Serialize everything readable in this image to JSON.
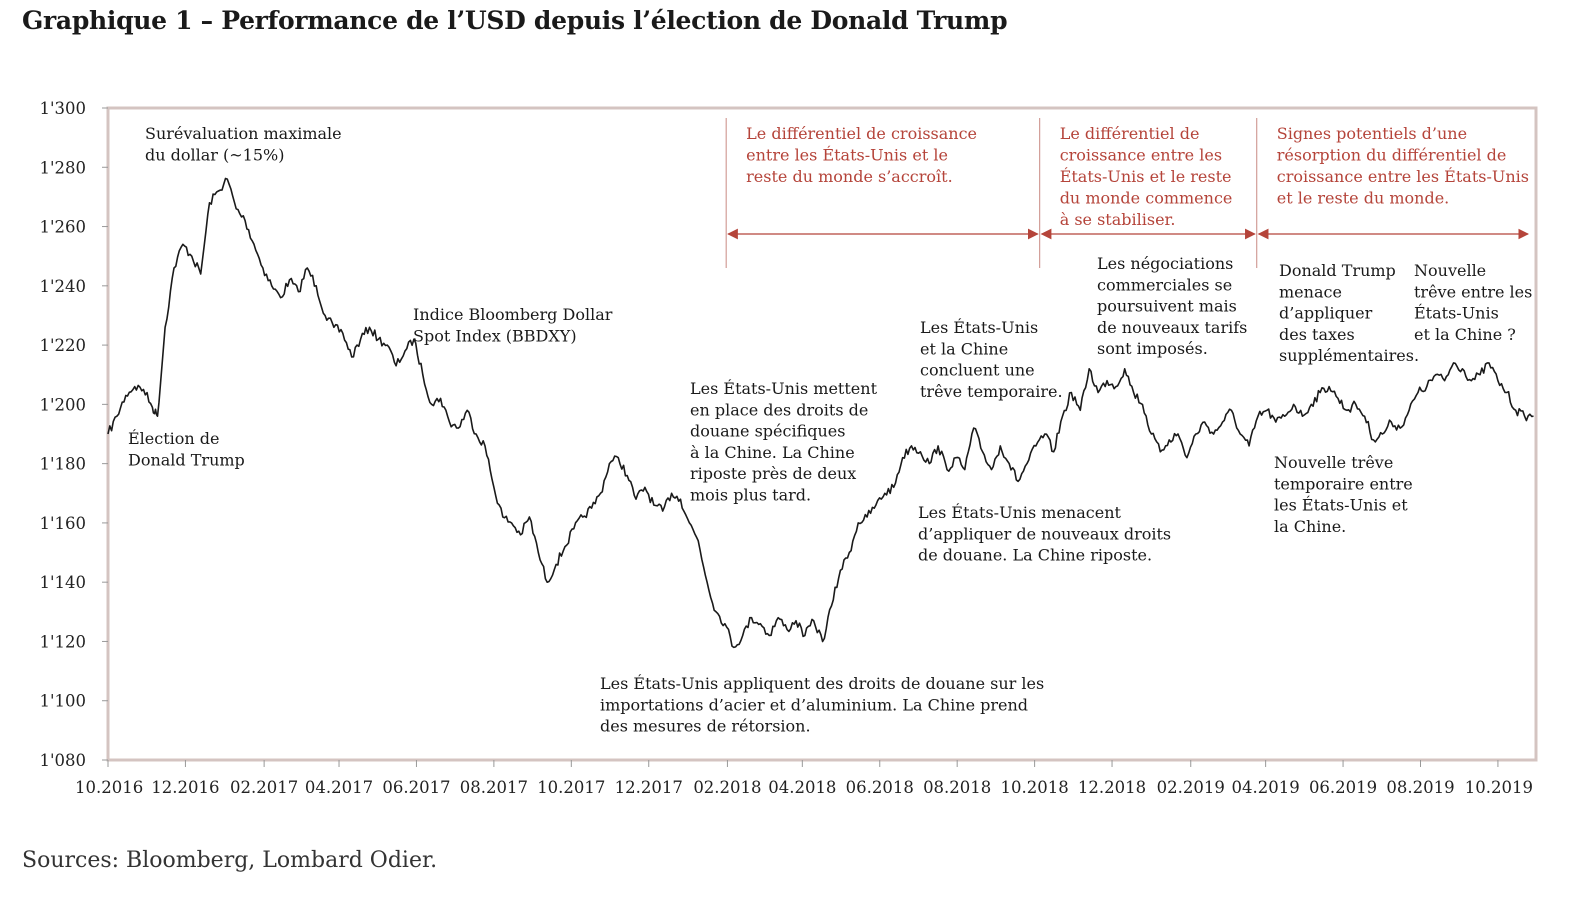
{
  "title": "Graphique 1 – Performance de l’USD depuis l’élection de Donald Trump",
  "sources": "Sources: Bloomberg, Lombard Odier.",
  "colors": {
    "line": "#1a1a1a",
    "frame": "#d4c4c1",
    "phase": "#b5443a",
    "phase_divider": "#c98a83"
  },
  "chart_data": {
    "type": "line",
    "xlim": [
      "2016-10-01",
      "2019-10-31"
    ],
    "ylim": [
      1080,
      1300
    ],
    "y_ticks": [
      1080,
      1100,
      1120,
      1140,
      1160,
      1180,
      1200,
      1220,
      1240,
      1260,
      1280,
      1300
    ],
    "y_tick_labels": [
      "1'080",
      "1'100",
      "1'120",
      "1'140",
      "1'160",
      "1'180",
      "1'200",
      "1'220",
      "1'240",
      "1'260",
      "1'280",
      "1'300"
    ],
    "x_ticks": [
      {
        "date": "2016-10-01",
        "label": "10.2016"
      },
      {
        "date": "2016-12-01",
        "label": "12.2016"
      },
      {
        "date": "2017-02-01",
        "label": "02.2017"
      },
      {
        "date": "2017-04-01",
        "label": "04.2017"
      },
      {
        "date": "2017-06-01",
        "label": "06.2017"
      },
      {
        "date": "2017-08-01",
        "label": "08.2017"
      },
      {
        "date": "2017-10-01",
        "label": "10.2017"
      },
      {
        "date": "2017-12-01",
        "label": "12.2017"
      },
      {
        "date": "2018-02-01",
        "label": "02.2018"
      },
      {
        "date": "2018-04-01",
        "label": "04.2018"
      },
      {
        "date": "2018-06-01",
        "label": "06.2018"
      },
      {
        "date": "2018-08-01",
        "label": "08.2018"
      },
      {
        "date": "2018-10-01",
        "label": "10.2018"
      },
      {
        "date": "2018-12-01",
        "label": "12.2018"
      },
      {
        "date": "2019-02-01",
        "label": "02.2019"
      },
      {
        "date": "2019-04-01",
        "label": "04.2019"
      },
      {
        "date": "2019-06-01",
        "label": "06.2019"
      },
      {
        "date": "2019-08-01",
        "label": "08.2019"
      },
      {
        "date": "2019-10-01",
        "label": "10.2019"
      }
    ],
    "series": [
      {
        "name": "Indice Bloomberg Dollar Spot Index (BBDXY)",
        "points": [
          [
            "2016-10-01",
            1190
          ],
          [
            "2016-10-08",
            1196
          ],
          [
            "2016-10-15",
            1203
          ],
          [
            "2016-10-22",
            1206
          ],
          [
            "2016-10-29",
            1205
          ],
          [
            "2016-11-05",
            1199
          ],
          [
            "2016-11-09",
            1196
          ],
          [
            "2016-11-15",
            1226
          ],
          [
            "2016-11-22",
            1246
          ],
          [
            "2016-11-29",
            1254
          ],
          [
            "2016-12-06",
            1250
          ],
          [
            "2016-12-13",
            1244
          ],
          [
            "2016-12-20",
            1268
          ],
          [
            "2016-12-27",
            1272
          ],
          [
            "2017-01-03",
            1276
          ],
          [
            "2017-01-10",
            1266
          ],
          [
            "2017-01-17",
            1262
          ],
          [
            "2017-01-24",
            1254
          ],
          [
            "2017-01-31",
            1246
          ],
          [
            "2017-02-07",
            1240
          ],
          [
            "2017-02-14",
            1236
          ],
          [
            "2017-02-21",
            1242
          ],
          [
            "2017-02-28",
            1238
          ],
          [
            "2017-03-07",
            1246
          ],
          [
            "2017-03-14",
            1240
          ],
          [
            "2017-03-21",
            1230
          ],
          [
            "2017-03-28",
            1226
          ],
          [
            "2017-04-04",
            1224
          ],
          [
            "2017-04-11",
            1216
          ],
          [
            "2017-04-18",
            1222
          ],
          [
            "2017-04-25",
            1226
          ],
          [
            "2017-05-02",
            1222
          ],
          [
            "2017-05-09",
            1220
          ],
          [
            "2017-05-16",
            1213
          ],
          [
            "2017-05-23",
            1218
          ],
          [
            "2017-05-30",
            1222
          ],
          [
            "2017-06-06",
            1210
          ],
          [
            "2017-06-13",
            1200
          ],
          [
            "2017-06-20",
            1202
          ],
          [
            "2017-06-27",
            1194
          ],
          [
            "2017-07-04",
            1192
          ],
          [
            "2017-07-11",
            1198
          ],
          [
            "2017-07-18",
            1190
          ],
          [
            "2017-07-25",
            1186
          ],
          [
            "2017-08-01",
            1172
          ],
          [
            "2017-08-08",
            1162
          ],
          [
            "2017-08-15",
            1160
          ],
          [
            "2017-08-22",
            1156
          ],
          [
            "2017-08-29",
            1162
          ],
          [
            "2017-09-05",
            1150
          ],
          [
            "2017-09-12",
            1140
          ],
          [
            "2017-09-19",
            1146
          ],
          [
            "2017-09-26",
            1152
          ],
          [
            "2017-10-03",
            1158
          ],
          [
            "2017-10-10",
            1162
          ],
          [
            "2017-10-17",
            1165
          ],
          [
            "2017-10-24",
            1170
          ],
          [
            "2017-10-31",
            1180
          ],
          [
            "2017-11-07",
            1182
          ],
          [
            "2017-11-14",
            1176
          ],
          [
            "2017-11-21",
            1168
          ],
          [
            "2017-11-28",
            1172
          ],
          [
            "2017-12-05",
            1166
          ],
          [
            "2017-12-12",
            1164
          ],
          [
            "2017-12-19",
            1170
          ],
          [
            "2017-12-26",
            1168
          ],
          [
            "2018-01-02",
            1160
          ],
          [
            "2018-01-09",
            1154
          ],
          [
            "2018-01-16",
            1140
          ],
          [
            "2018-01-23",
            1130
          ],
          [
            "2018-01-30",
            1126
          ],
          [
            "2018-02-06",
            1118
          ],
          [
            "2018-02-13",
            1122
          ],
          [
            "2018-02-20",
            1128
          ],
          [
            "2018-02-27",
            1126
          ],
          [
            "2018-03-06",
            1122
          ],
          [
            "2018-03-13",
            1128
          ],
          [
            "2018-03-20",
            1124
          ],
          [
            "2018-03-27",
            1127
          ],
          [
            "2018-04-03",
            1122
          ],
          [
            "2018-04-10",
            1127
          ],
          [
            "2018-04-17",
            1120
          ],
          [
            "2018-04-24",
            1132
          ],
          [
            "2018-05-01",
            1144
          ],
          [
            "2018-05-08",
            1150
          ],
          [
            "2018-05-15",
            1160
          ],
          [
            "2018-05-22",
            1162
          ],
          [
            "2018-05-29",
            1166
          ],
          [
            "2018-06-05",
            1170
          ],
          [
            "2018-06-12",
            1172
          ],
          [
            "2018-06-19",
            1182
          ],
          [
            "2018-06-26",
            1186
          ],
          [
            "2018-07-03",
            1184
          ],
          [
            "2018-07-10",
            1180
          ],
          [
            "2018-07-17",
            1186
          ],
          [
            "2018-07-24",
            1178
          ],
          [
            "2018-07-31",
            1182
          ],
          [
            "2018-08-07",
            1178
          ],
          [
            "2018-08-14",
            1192
          ],
          [
            "2018-08-21",
            1184
          ],
          [
            "2018-08-28",
            1178
          ],
          [
            "2018-09-04",
            1186
          ],
          [
            "2018-09-11",
            1180
          ],
          [
            "2018-09-18",
            1174
          ],
          [
            "2018-09-25",
            1180
          ],
          [
            "2018-10-02",
            1186
          ],
          [
            "2018-10-09",
            1190
          ],
          [
            "2018-10-16",
            1184
          ],
          [
            "2018-10-23",
            1196
          ],
          [
            "2018-10-30",
            1204
          ],
          [
            "2018-11-06",
            1198
          ],
          [
            "2018-11-13",
            1212
          ],
          [
            "2018-11-20",
            1204
          ],
          [
            "2018-11-27",
            1208
          ],
          [
            "2018-12-04",
            1206
          ],
          [
            "2018-12-11",
            1212
          ],
          [
            "2018-12-18",
            1204
          ],
          [
            "2018-12-25",
            1200
          ],
          [
            "2019-01-01",
            1190
          ],
          [
            "2019-01-08",
            1184
          ],
          [
            "2019-01-15",
            1188
          ],
          [
            "2019-01-22",
            1190
          ],
          [
            "2019-01-29",
            1182
          ],
          [
            "2019-02-05",
            1190
          ],
          [
            "2019-02-12",
            1194
          ],
          [
            "2019-02-19",
            1190
          ],
          [
            "2019-02-26",
            1194
          ],
          [
            "2019-03-05",
            1198
          ],
          [
            "2019-03-12",
            1190
          ],
          [
            "2019-03-19",
            1186
          ],
          [
            "2019-03-26",
            1196
          ],
          [
            "2019-04-02",
            1198
          ],
          [
            "2019-04-09",
            1194
          ],
          [
            "2019-04-16",
            1196
          ],
          [
            "2019-04-23",
            1200
          ],
          [
            "2019-04-30",
            1196
          ],
          [
            "2019-05-07",
            1200
          ],
          [
            "2019-05-14",
            1204
          ],
          [
            "2019-05-21",
            1206
          ],
          [
            "2019-05-28",
            1202
          ],
          [
            "2019-06-04",
            1198
          ],
          [
            "2019-06-11",
            1200
          ],
          [
            "2019-06-18",
            1196
          ],
          [
            "2019-06-25",
            1188
          ],
          [
            "2019-07-02",
            1190
          ],
          [
            "2019-07-09",
            1194
          ],
          [
            "2019-07-16",
            1192
          ],
          [
            "2019-07-23",
            1198
          ],
          [
            "2019-07-30",
            1204
          ],
          [
            "2019-08-06",
            1206
          ],
          [
            "2019-08-13",
            1210
          ],
          [
            "2019-08-20",
            1208
          ],
          [
            "2019-08-27",
            1214
          ],
          [
            "2019-09-03",
            1212
          ],
          [
            "2019-09-10",
            1208
          ],
          [
            "2019-09-17",
            1210
          ],
          [
            "2019-09-24",
            1214
          ],
          [
            "2019-10-01",
            1208
          ],
          [
            "2019-10-08",
            1204
          ],
          [
            "2019-10-15",
            1198
          ],
          [
            "2019-10-22",
            1196
          ],
          [
            "2019-10-29",
            1196
          ]
        ]
      }
    ],
    "phases": [
      {
        "start": "2018-01-31",
        "end": "2018-10-05",
        "lines": [
          "Le différentiel de croissance",
          "entre les États-Unis et le",
          "reste du monde s’accroît."
        ]
      },
      {
        "start": "2018-10-05",
        "end": "2019-03-25",
        "lines": [
          "Le différentiel de",
          "croissance entre les",
          "États-Unis et le reste",
          "du monde commence",
          "à se stabiliser."
        ]
      },
      {
        "start": "2019-03-25",
        "end": "2019-10-31",
        "lines": [
          "Signes potentiels d’une",
          "résorption du différentiel de",
          "croissance entre les États-Unis",
          "et le reste du monde."
        ]
      }
    ],
    "annotations": [
      {
        "id": "max-overvaluation",
        "lines": [
          "Surévaluation maximale",
          "du dollar (~15%)"
        ]
      },
      {
        "id": "trump-election",
        "lines": [
          "Élection de",
          "Donald Trump"
        ]
      },
      {
        "id": "series-label",
        "lines": [
          "Indice Bloomberg Dollar",
          "Spot Index (BBDXY)"
        ]
      },
      {
        "id": "steel-tariffs",
        "lines": [
          "Les États-Unis appliquent des droits de douane sur les",
          "importations d’acier et d’aluminium. La Chine prend",
          "des mesures de rétorsion."
        ]
      },
      {
        "id": "china-duties",
        "lines": [
          "Les États-Unis mettent",
          "en place des droits de",
          "douane spécifiques",
          "à la Chine. La Chine",
          "riposte près de deux",
          "mois plus tard."
        ]
      },
      {
        "id": "temporary-truce-1",
        "lines": [
          "Les États-Unis",
          "et la Chine",
          "concluent une",
          "trêve temporaire."
        ]
      },
      {
        "id": "new-tariffs-threat",
        "lines": [
          "Les États-Unis menacent",
          "d’appliquer de nouveaux droits",
          "de douane. La Chine riposte."
        ]
      },
      {
        "id": "negotiations",
        "lines": [
          "Les négociations",
          "commerciales se",
          "poursuivent mais",
          "de nouveaux tarifs",
          "sont imposés."
        ]
      },
      {
        "id": "trump-threatens",
        "lines": [
          "Donald Trump",
          "menace",
          "d’appliquer",
          "des taxes",
          "supplémentaires."
        ]
      },
      {
        "id": "new-truce-question",
        "lines": [
          "Nouvelle",
          "trêve entre les",
          "États-Unis",
          "et la Chine ?"
        ]
      },
      {
        "id": "temporary-truce-2",
        "lines": [
          "Nouvelle trêve",
          "temporaire entre",
          "les États-Unis et",
          "la Chine."
        ]
      }
    ]
  }
}
